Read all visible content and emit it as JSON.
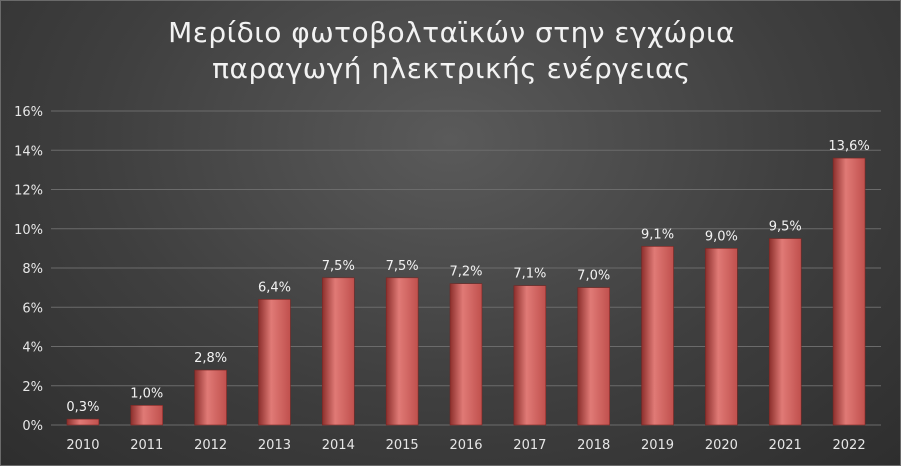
{
  "chart_data": {
    "type": "bar",
    "title_lines": [
      "Μερίδιο φωτοβολταϊκών στην εγχώρια",
      "παραγωγή ηλεκτρικής ενέργειας"
    ],
    "categories": [
      "2010",
      "2011",
      "2012",
      "2013",
      "2014",
      "2015",
      "2016",
      "2017",
      "2018",
      "2019",
      "2020",
      "2021",
      "2022"
    ],
    "values": [
      0.3,
      1.0,
      2.8,
      6.4,
      7.5,
      7.5,
      7.2,
      7.1,
      7.0,
      9.1,
      9.0,
      9.5,
      13.6
    ],
    "data_labels": [
      "0,3%",
      "1,0%",
      "2,8%",
      "6,4%",
      "7,5%",
      "7,5%",
      "7,2%",
      "7,1%",
      "7,0%",
      "9,1%",
      "9,0%",
      "9,5%",
      "13,6%"
    ],
    "y_ticks": [
      0,
      2,
      4,
      6,
      8,
      10,
      12,
      14,
      16
    ],
    "y_tick_labels": [
      "0%",
      "2%",
      "4%",
      "6%",
      "8%",
      "10%",
      "12%",
      "14%",
      "16%"
    ],
    "ylim": [
      0,
      16
    ],
    "xlabel": "",
    "ylabel": "",
    "grid": true,
    "legend": "none",
    "colors": {
      "bar": "#c0504d",
      "bar_light": "#e07a76",
      "bar_dark": "#8c2f2c",
      "grid": "#6b6b6b",
      "text": "#e6e6e6"
    }
  }
}
